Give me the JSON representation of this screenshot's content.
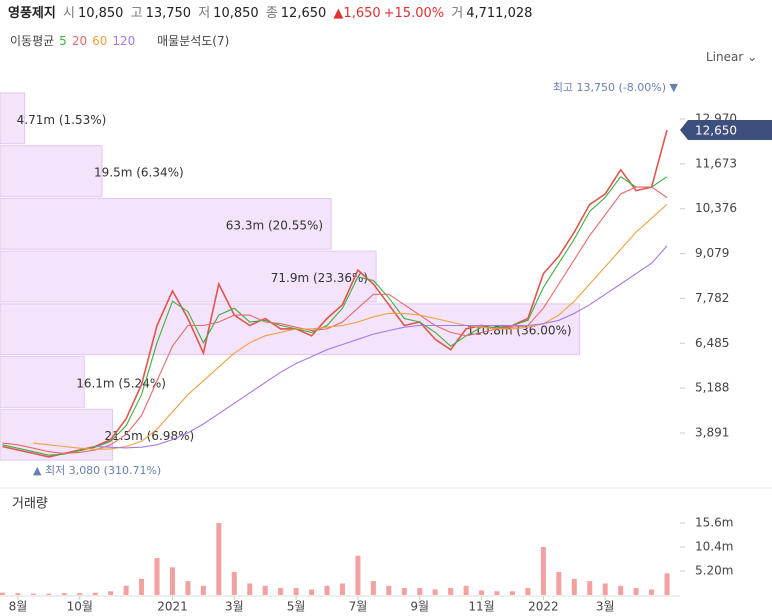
{
  "header": {
    "name": "영풍제지",
    "open_label": "시",
    "open": "10,850",
    "high_label": "고",
    "high": "13,750",
    "low_label": "저",
    "low": "10,850",
    "close_label": "종",
    "close": "12,650",
    "change": "▲1,650",
    "change_pct": "+15.00%",
    "volume_label": "거",
    "volume": "4,711,028"
  },
  "chart_data": [
    {
      "type": "line",
      "legend_title": "이동평균",
      "scale_label": "Linear",
      "categories": [
        null,
        "8월",
        null,
        null,
        null,
        "10월",
        null,
        null,
        null,
        null,
        null,
        "2021",
        null,
        null,
        null,
        "3월",
        null,
        null,
        null,
        "5월",
        null,
        null,
        null,
        "7월",
        null,
        null,
        null,
        "9월",
        null,
        null,
        null,
        "11월",
        null,
        null,
        null,
        "2022",
        null,
        null,
        null,
        "3월",
        null,
        null,
        null,
        null
      ],
      "series": [
        {
          "color": "#e0554f",
          "values": [
            3500,
            3400,
            3300,
            3200,
            3300,
            3400,
            3500,
            3700,
            4300,
            5300,
            7000,
            8000,
            7200,
            6200,
            8200,
            7300,
            7000,
            7200,
            6900,
            6900,
            6700,
            7200,
            7600,
            8600,
            8200,
            7600,
            7000,
            7100,
            6600,
            6300,
            6900,
            7000,
            6900,
            7000,
            7200,
            8500,
            9000,
            9700,
            10500,
            10800,
            11500,
            10900,
            11000,
            12650
          ]
        },
        {
          "name": "5",
          "color": "#3fae3f",
          "values": [
            3550,
            3450,
            3350,
            3250,
            3280,
            3380,
            3480,
            3650,
            4100,
            5000,
            6500,
            7700,
            7400,
            6500,
            7300,
            7500,
            7100,
            7150,
            7000,
            6900,
            6800,
            7000,
            7500,
            8400,
            8300,
            7800,
            7200,
            7100,
            6800,
            6400,
            6700,
            6950,
            6950,
            7000,
            7150,
            8100,
            8800,
            9500,
            10300,
            10700,
            11300,
            11000,
            11000,
            11300
          ]
        },
        {
          "name": "20",
          "color": "#e86a6a",
          "values": [
            3600,
            3550,
            3450,
            3350,
            3300,
            3330,
            3400,
            3550,
            3850,
            4400,
            5400,
            6400,
            7000,
            7000,
            7100,
            7300,
            7300,
            7100,
            7050,
            6950,
            6850,
            6900,
            7100,
            7500,
            7900,
            7900,
            7600,
            7300,
            7000,
            6800,
            6700,
            6800,
            6900,
            6950,
            7000,
            7500,
            8200,
            8900,
            9600,
            10200,
            10800,
            11000,
            11000,
            10700
          ]
        },
        {
          "name": "60",
          "color": "#f0a040",
          "values": [
            null,
            null,
            3600,
            3550,
            3500,
            3450,
            3420,
            3430,
            3500,
            3650,
            4000,
            4500,
            5000,
            5400,
            5800,
            6200,
            6500,
            6700,
            6800,
            6900,
            6900,
            6950,
            7000,
            7100,
            7250,
            7350,
            7350,
            7300,
            7200,
            7100,
            7000,
            6950,
            6900,
            6900,
            6950,
            7050,
            7300,
            7700,
            8200,
            8700,
            9200,
            9700,
            10100,
            10500
          ]
        },
        {
          "name": "120",
          "color": "#a47ae6",
          "values": [
            null,
            null,
            null,
            null,
            null,
            null,
            3500,
            3480,
            3460,
            3480,
            3550,
            3700,
            3900,
            4150,
            4450,
            4750,
            5050,
            5350,
            5650,
            5900,
            6100,
            6300,
            6450,
            6600,
            6750,
            6850,
            6950,
            7000,
            7000,
            7000,
            7000,
            7000,
            7000,
            7000,
            7000,
            7050,
            7150,
            7350,
            7600,
            7900,
            8200,
            8500,
            8800,
            9300
          ]
        }
      ],
      "ylim": [
        2532,
        13952
      ],
      "yticks": [
        {
          "value": 3891,
          "label": "3,891"
        },
        {
          "value": 5188,
          "label": "5,188"
        },
        {
          "value": 6485,
          "label": "6,485"
        },
        {
          "value": 7782,
          "label": "7,782"
        },
        {
          "value": 9079,
          "label": "9,079"
        },
        {
          "value": 10376,
          "label": "10,376"
        },
        {
          "value": 11673,
          "label": "11,673"
        },
        {
          "value": 12970,
          "label": "12,970"
        }
      ],
      "current_price": {
        "value": 12650,
        "label": "12,650"
      },
      "high_annotation": "최고 13,750 (-8.00%) ▼",
      "low_annotation": "▲ 최저 3,080 (310.71%)",
      "volume_profile": {
        "title": "매물분석도(7)",
        "color": "#f3e4fb",
        "edge_color": "#e2c6f2",
        "bins": [
          3080,
          4604,
          6129,
          7653,
          9177,
          10701,
          12226,
          13750
        ],
        "values": [
          21.5,
          16.1,
          110.8,
          71.9,
          63.3,
          19.5,
          4.71
        ],
        "value_labels": [
          "21.5m (6.98%)",
          "16.1m (5.24%)",
          "110.8m (36.00%)",
          "71.9m (23.36%)",
          "63.3m (20.55%)",
          "19.5m (6.34%)",
          "4.71m (1.53%)"
        ],
        "xlim": [
          0,
          130
        ]
      }
    },
    {
      "type": "bar",
      "title": "거래량",
      "color": "#f2a0a0",
      "values": [
        0.5,
        0.4,
        0.3,
        0.3,
        0.4,
        0.4,
        0.5,
        0.8,
        2.0,
        3.5,
        8.0,
        6.0,
        3.0,
        2.0,
        15.6,
        5.0,
        2.5,
        2.0,
        1.5,
        1.5,
        1.2,
        2.0,
        2.5,
        8.5,
        3.0,
        2.0,
        1.5,
        1.5,
        1.2,
        1.5,
        2.0,
        1.0,
        0.8,
        0.8,
        1.5,
        10.4,
        5.0,
        3.5,
        3.0,
        2.5,
        2.0,
        1.5,
        1.2,
        4.7
      ],
      "ylim": [
        0,
        21.67
      ],
      "yticks": [
        {
          "value": 5.2,
          "label": "5.20m"
        },
        {
          "value": 10.4,
          "label": "10.4m"
        },
        {
          "value": 15.6,
          "label": "15.6m"
        }
      ]
    }
  ]
}
